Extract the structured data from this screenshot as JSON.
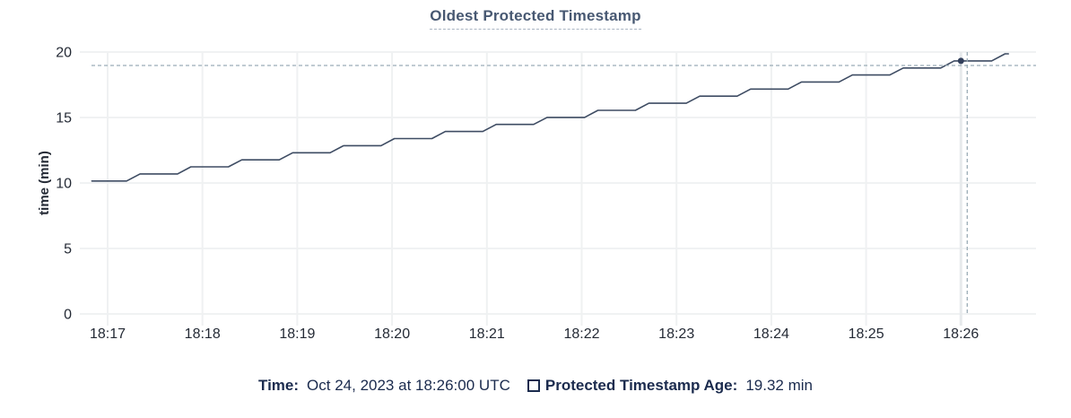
{
  "chart_data": {
    "type": "line",
    "title": "Oldest Protected Timestamp",
    "xlabel": "",
    "ylabel": "time (min)",
    "ylim": [
      0,
      20
    ],
    "yticks": [
      0,
      5,
      10,
      15,
      20
    ],
    "x_tick_labels": [
      "18:17",
      "18:18",
      "18:19",
      "18:20",
      "18:21",
      "18:22",
      "18:23",
      "18:24",
      "18:25",
      "18:26"
    ],
    "x_seconds_per_tick": 60,
    "grid": true,
    "legend_position": "bottom",
    "series": [
      {
        "name": "Protected Timestamp Age",
        "color": "#3e4c63",
        "points_t_seconds_value_min": [
          [
            -10,
            10.15
          ],
          [
            12,
            10.15
          ],
          [
            20.5,
            10.69
          ],
          [
            44.2,
            10.69
          ],
          [
            52.7,
            11.23
          ],
          [
            76.4,
            11.23
          ],
          [
            84.9,
            11.77
          ],
          [
            108.6,
            11.77
          ],
          [
            117.1,
            12.31
          ],
          [
            140.8,
            12.31
          ],
          [
            149.3,
            12.85
          ],
          [
            173,
            12.85
          ],
          [
            181.5,
            13.39
          ],
          [
            205.2,
            13.39
          ],
          [
            213.7,
            13.93
          ],
          [
            237.4,
            13.93
          ],
          [
            245.9,
            14.47
          ],
          [
            269.6,
            14.47
          ],
          [
            278.1,
            15.01
          ],
          [
            301.8,
            15.01
          ],
          [
            310.3,
            15.55
          ],
          [
            334,
            15.55
          ],
          [
            342.5,
            16.09
          ],
          [
            366.2,
            16.09
          ],
          [
            374.7,
            16.63
          ],
          [
            398.4,
            16.63
          ],
          [
            406.9,
            17.17
          ],
          [
            430.6,
            17.17
          ],
          [
            439.1,
            17.71
          ],
          [
            462.8,
            17.71
          ],
          [
            471.3,
            18.25
          ],
          [
            495,
            18.25
          ],
          [
            503.5,
            18.78
          ],
          [
            527.2,
            18.78
          ],
          [
            535.7,
            19.32
          ],
          [
            559.4,
            19.32
          ],
          [
            567.9,
            19.86
          ],
          [
            570,
            19.86
          ]
        ]
      }
    ],
    "crosshair": {
      "snapped_point": {
        "t_seconds": 540,
        "value_min": 19.32,
        "time_label": "18:26:00"
      },
      "cursor": {
        "t_seconds": 544,
        "value_min": 18.97
      },
      "line_color": "#9bacb6",
      "dot_color": "#33405c"
    },
    "colors": {
      "grid": "#f0f2f3",
      "grid_vertical": "#eff1f2",
      "grid_hovered": "#e7eaec",
      "tick_text": "#242a35",
      "title_text": "#475872",
      "legend_text": "#1b2b4e"
    }
  },
  "legend": {
    "time_label": "Time:",
    "time_value": "Oct 24, 2023 at 18:26:00 UTC",
    "series_label": "Protected Timestamp Age:",
    "series_value": "19.32 min"
  }
}
